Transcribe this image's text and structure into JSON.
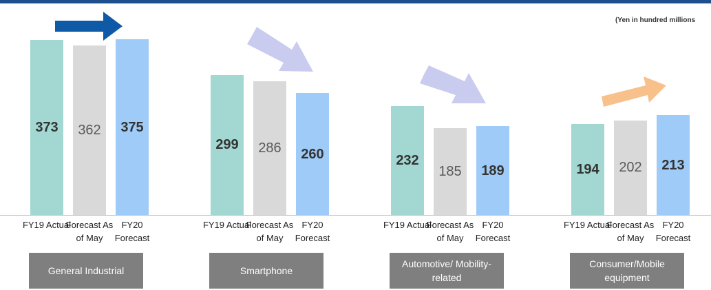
{
  "chart_data": {
    "type": "bar",
    "note": "(Yen in hundred millions",
    "categories": [
      "General Industrial",
      "Smartphone",
      "Automotive/ Mobility-related",
      "Consumer/Mobile equipment"
    ],
    "series": [
      {
        "name": "FY19 Actual",
        "color": "#a3d8d2",
        "values": [
          373,
          299,
          232,
          194
        ]
      },
      {
        "name": "Forecast As of May",
        "color": "#d9d9d9",
        "values": [
          362,
          286,
          185,
          202
        ]
      },
      {
        "name": "FY20 Forecast",
        "color": "#9ecbf7",
        "values": [
          375,
          260,
          189,
          213
        ]
      }
    ],
    "ylim": [
      0,
      450
    ]
  }
}
